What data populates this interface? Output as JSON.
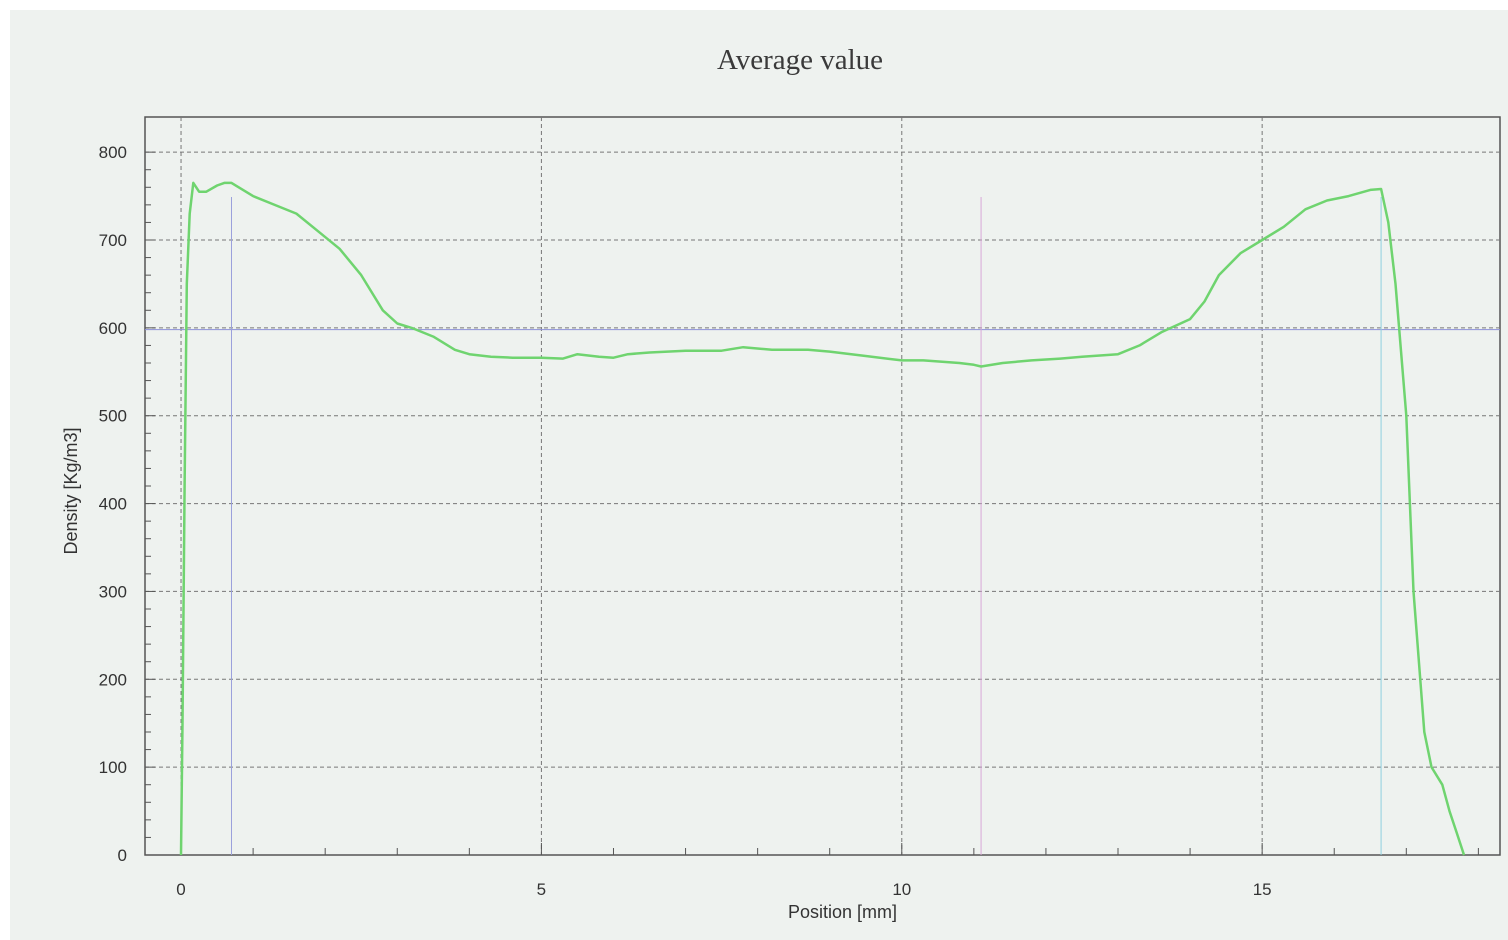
{
  "chart_data": {
    "type": "line",
    "title": "Average value",
    "xlabel": "Position [mm]",
    "ylabel": "Density [Kg/m3]",
    "xlim": [
      -0.5,
      18.3
    ],
    "ylim": [
      0,
      840
    ],
    "x_ticks": [
      0,
      5,
      10,
      15
    ],
    "y_ticks": [
      0,
      100,
      200,
      300,
      400,
      500,
      600,
      700,
      800
    ],
    "grid": true,
    "colors": {
      "line": "#6fd46f",
      "axis": "#555555",
      "grid": "#777777",
      "avg_line": "#8c90d8",
      "marker_left": "#9aa0dc",
      "marker_mid": "#d9a9d9",
      "marker_right": "#8fd0e0"
    },
    "reference_lines": {
      "average_density": 598,
      "marker_positions": [
        0.7,
        11.1,
        16.65
      ]
    },
    "series": [
      {
        "x": [
          0,
          0.02,
          0.05,
          0.08,
          0.12,
          0.17,
          0.25,
          0.35,
          0.5,
          0.6,
          0.7,
          0.8,
          0.9,
          1.0,
          1.3,
          1.6,
          1.9,
          2.2,
          2.5,
          2.8,
          3.0,
          3.2,
          3.5,
          3.8,
          4.0,
          4.3,
          4.6,
          5.0,
          5.3,
          5.5,
          5.8,
          6.0,
          6.2,
          6.5,
          7.0,
          7.5,
          7.8,
          8.2,
          8.7,
          9.0,
          9.5,
          10.0,
          10.3,
          10.8,
          11.0,
          11.1,
          11.4,
          11.8,
          12.2,
          12.5,
          13.0,
          13.3,
          13.6,
          14.0,
          14.2,
          14.4,
          14.7,
          15.0,
          15.3,
          15.6,
          15.9,
          16.2,
          16.5,
          16.65,
          16.75,
          16.85,
          17.0,
          17.1,
          17.25,
          17.35,
          17.5,
          17.6,
          17.7,
          17.8
        ],
        "y": [
          0,
          150,
          420,
          650,
          730,
          765,
          755,
          755,
          762,
          765,
          765,
          760,
          755,
          750,
          740,
          730,
          710,
          690,
          660,
          620,
          605,
          600,
          590,
          575,
          570,
          567,
          566,
          566,
          565,
          570,
          567,
          566,
          570,
          572,
          574,
          574,
          578,
          575,
          575,
          573,
          568,
          563,
          563,
          560,
          558,
          556,
          560,
          563,
          565,
          567,
          570,
          580,
          595,
          610,
          630,
          660,
          685,
          700,
          715,
          735,
          745,
          750,
          757,
          758,
          720,
          650,
          500,
          300,
          140,
          100,
          80,
          50,
          25,
          0
        ]
      }
    ]
  }
}
